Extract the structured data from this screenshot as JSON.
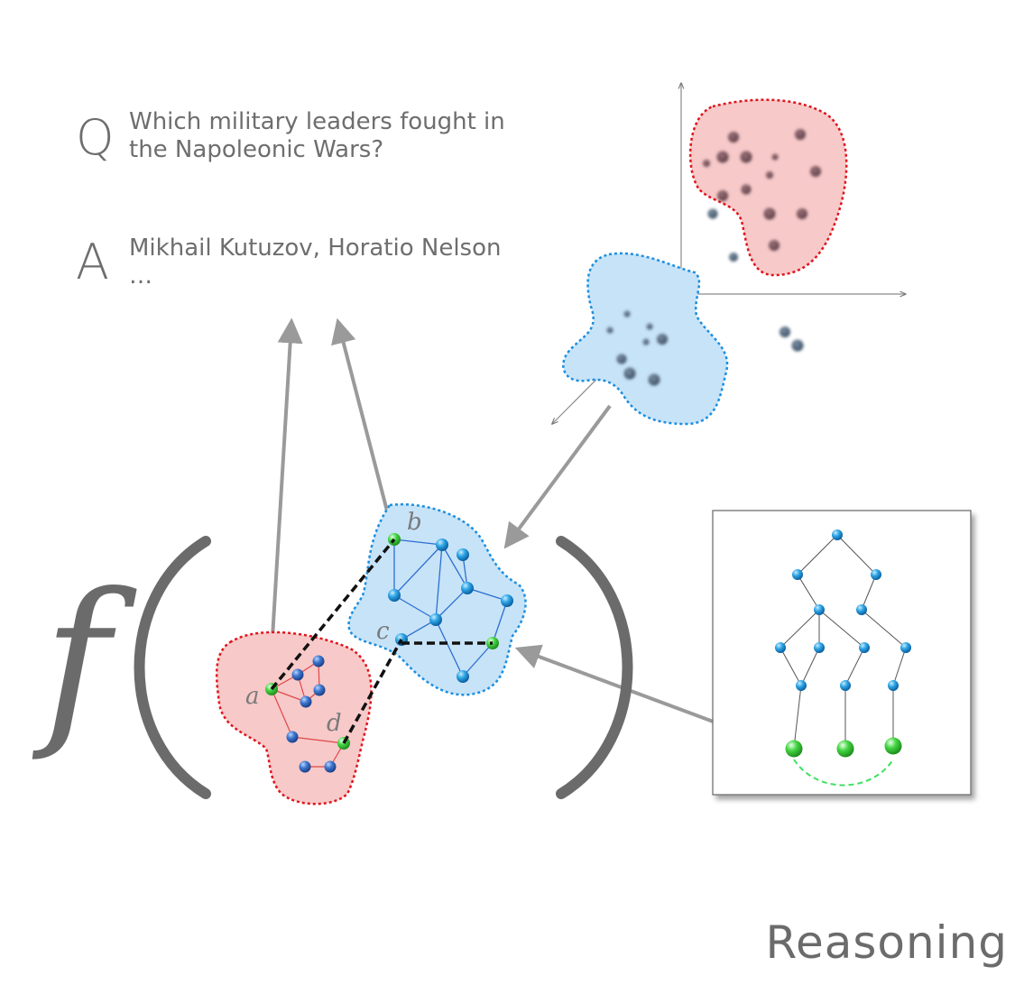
{
  "question": {
    "letter": "Q",
    "text": "Which military leaders fought in the Napoleonic Wars?"
  },
  "answer": {
    "letter": "A",
    "text": "Mikhail Kutuzov, Horatio Nelson …"
  },
  "function_symbol": "f",
  "node_labels": {
    "a": "a",
    "b": "b",
    "c": "c",
    "d": "d"
  },
  "caption": "Reasoning",
  "colors": {
    "red_region": "#f7c9c9",
    "red_border": "#e0141c",
    "blue_region": "#c7e3f8",
    "blue_border": "#1a8fe0",
    "green_node": "#3fd13f",
    "arrow_gray": "#9a9a9a",
    "text_gray": "#6e6e6e"
  }
}
